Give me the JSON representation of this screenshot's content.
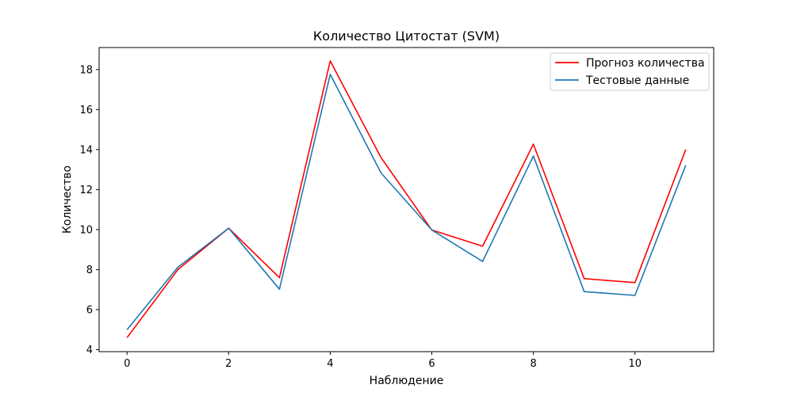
{
  "chart_data": {
    "type": "line",
    "title": "Количество Цитостат  (SVM)",
    "xlabel": "Наблюдение",
    "ylabel": "Количество",
    "xlim": [
      -0.55,
      11.55
    ],
    "ylim": [
      3.9,
      19.1
    ],
    "x_ticks": [
      0,
      2,
      4,
      6,
      8,
      10
    ],
    "y_ticks": [
      4,
      6,
      8,
      10,
      12,
      14,
      16,
      18
    ],
    "grid": false,
    "legend_position": "top-right",
    "x": [
      0,
      1,
      2,
      3,
      4,
      5,
      6,
      7,
      8,
      9,
      10,
      11
    ],
    "series": [
      {
        "name": "Прогноз количества",
        "color": "#ff0000",
        "values": [
          4.6,
          8.0,
          10.07,
          7.6,
          18.43,
          13.6,
          9.98,
          9.17,
          14.27,
          7.55,
          7.35,
          14.0
        ]
      },
      {
        "name": "Тестовые данные",
        "color": "#1f77b4",
        "values": [
          5.0,
          8.12,
          10.07,
          7.02,
          17.76,
          12.83,
          9.98,
          8.41,
          13.68,
          6.9,
          6.71,
          13.22
        ]
      }
    ]
  }
}
